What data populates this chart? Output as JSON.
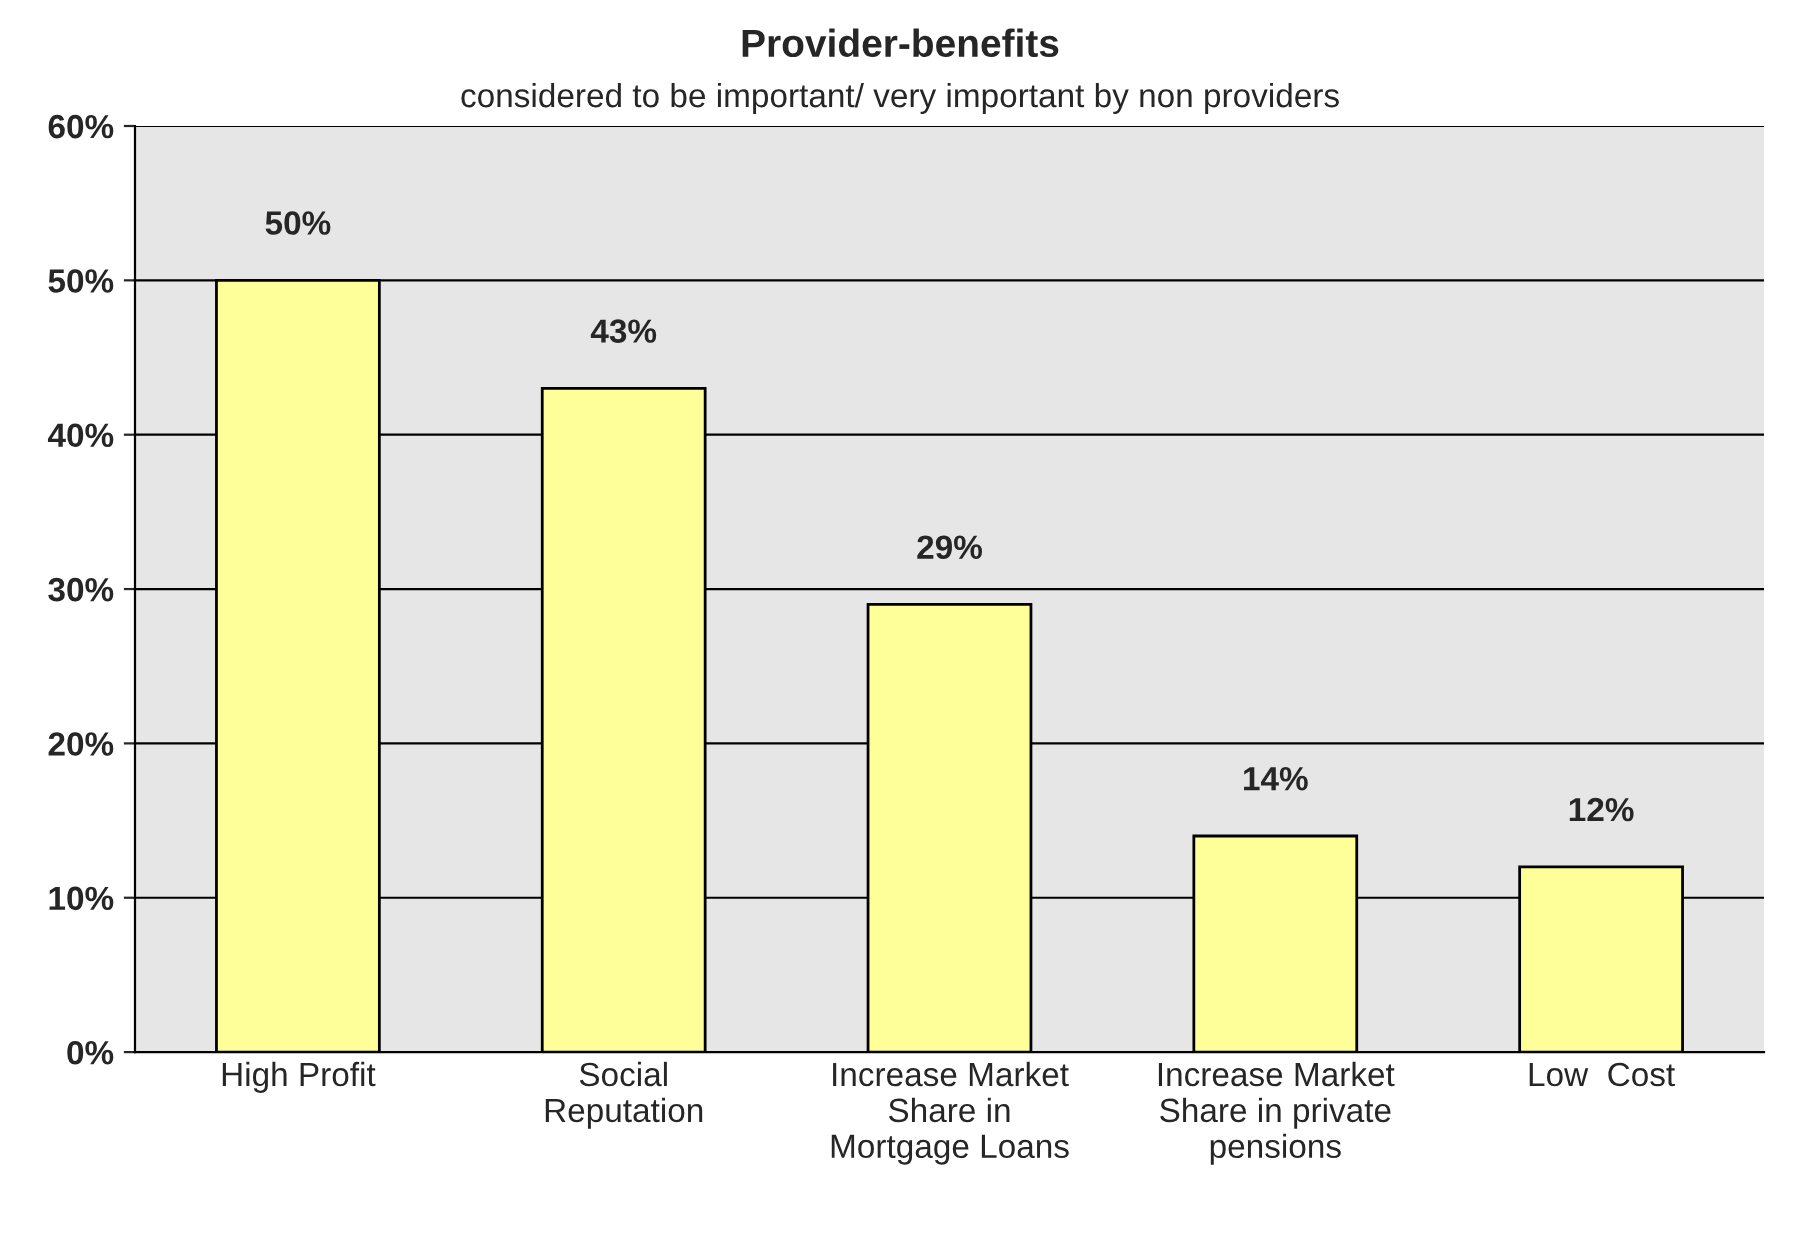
{
  "chart_data": {
    "type": "bar",
    "title": "Provider-benefits",
    "subtitle": "considered to be important/ very important by non providers",
    "categories": [
      "High Profit",
      "Social\nReputation",
      "Increase Market\nShare in\nMortgage Loans",
      "Increase Market\nShare in private\npensions",
      "Low  Cost"
    ],
    "values": [
      50,
      43,
      29,
      14,
      12
    ],
    "value_labels": [
      "50%",
      "43%",
      "29%",
      "14%",
      "12%"
    ],
    "color": "#ffff99",
    "ylim": [
      0,
      60
    ],
    "yticks": [
      {
        "value": 0,
        "label": "0%"
      },
      {
        "value": 10,
        "label": "10%"
      },
      {
        "value": 20,
        "label": "20%"
      },
      {
        "value": 30,
        "label": "30%"
      },
      {
        "value": 40,
        "label": "40%"
      },
      {
        "value": 50,
        "label": "50%"
      },
      {
        "value": 60,
        "label": "60%"
      }
    ],
    "grid": "y",
    "legend": false
  }
}
